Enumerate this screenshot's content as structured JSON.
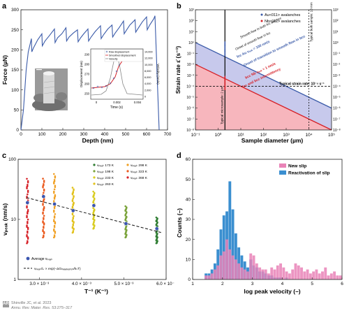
{
  "figure": {
    "credit_line1": "Shinville JC, et al. 2023",
    "credit_line2": "Annu. Rev. Mater. Res. 53:275–317",
    "credit_logo": "AR"
  },
  "panels": {
    "a": {
      "label": "a"
    },
    "b": {
      "label": "b"
    },
    "c": {
      "label": "c"
    },
    "d": {
      "label": "d"
    }
  },
  "colors": {
    "blue_series": "#3a5aa8",
    "red_series": "#d62027",
    "violet_band": "#c7c9ec",
    "pink_band": "#f7b6bd",
    "d_pink": "#e983b7",
    "d_blue": "#3b8fd0"
  },
  "chart_data": [
    {
      "id": "a",
      "type": "line",
      "xlabel": "Depth (nm)",
      "ylabel": "Force (µN)",
      "xlim": [
        0,
        700
      ],
      "ylim": [
        0,
        300
      ],
      "xticks": [
        "0",
        "100",
        "200",
        "300",
        "400",
        "500",
        "600",
        "700"
      ],
      "yticks": [
        "0",
        "50",
        "100",
        "150",
        "200",
        "250",
        "300"
      ],
      "series": [
        {
          "x": [
            0,
            12,
            25,
            35,
            50,
            52,
            60,
            80,
            100,
            102,
            115,
            135,
            160,
            163,
            175,
            195,
            215,
            218,
            230,
            250,
            270,
            273,
            285,
            300,
            320,
            323,
            335,
            355,
            380,
            383,
            395,
            415,
            435,
            438,
            450,
            470,
            490,
            493,
            505,
            520,
            545,
            548,
            560,
            580,
            600,
            603,
            615,
            635,
            640,
            660
          ],
          "y": [
            0,
            50,
            150,
            195,
            228,
            195,
            205,
            225,
            240,
            210,
            222,
            235,
            252,
            218,
            230,
            240,
            255,
            222,
            232,
            242,
            250,
            220,
            230,
            240,
            252,
            222,
            232,
            246,
            260,
            228,
            238,
            252,
            262,
            232,
            242,
            256,
            272,
            240,
            250,
            262,
            275,
            244,
            254,
            270,
            282,
            250,
            262,
            278,
            285,
            0
          ]
        }
      ],
      "inset": {
        "xlabel": "Time (s)",
        "ylabel": "Displacement (nm)",
        "ylabel_right": "Velocity (nm/s)",
        "xticks": [
          "0",
          "0.002",
          "0.004"
        ],
        "yticks_left": [
          "250",
          "260",
          "270",
          "280",
          "290"
        ],
        "yticks_right": [
          "0",
          "2,000",
          "4,000",
          "6,000",
          "8,000",
          "10,000",
          "12,000",
          "14,000"
        ],
        "legend": [
          "Raw displacement",
          "Smoothed displacement",
          "Velocity"
        ]
      }
    },
    {
      "id": "b",
      "type": "line",
      "xlabel": "Sample diameter (µm)",
      "ylabel": "Strain rate ε̇ (s⁻¹)",
      "xscale": "log",
      "yscale": "log",
      "xlim": [
        0.1,
        100000
      ],
      "ylim": [
        1e-08,
        1000
      ],
      "xticks": [
        "10⁻¹",
        "10⁰",
        "10¹",
        "10²",
        "10³",
        "10⁴",
        "10⁵"
      ],
      "yticks": [
        "10⁻⁸",
        "10⁻⁷",
        "10⁻⁶",
        "10⁻⁵",
        "10⁻⁴",
        "10⁻³",
        "10⁻²",
        "10⁻¹",
        "10⁰",
        "10¹",
        "10²",
        "10³"
      ],
      "legend": [
        "Au<011> avalanches",
        "Nb<011> avalanches"
      ],
      "annotations": {
        "smooth_flow": "Smooth flow in both fcc and bcc",
        "onset_fcc": "Onset of smooth flow in fcc",
        "fcc_au": "fcc Au vₒᵣᵢₜ = 100 nm/s",
        "onset_bcc": "Onset of transition to smooth flow in bcc",
        "bcc_nb": "bcc Nb vₒᵣᵢₜ = 1 nm/s",
        "intermittency": "fcc and bcc intermittency",
        "typical_rate": "Typical strain rate: 10⁻⁴ s⁻¹",
        "micro_sample": "Typical microsample: 2 µm",
        "bulk_sample": "Typical bulk sample: 10 mm"
      },
      "series": [
        {
          "name": "fcc Au vₒᵣᵢₜ = 100 nm/s",
          "x": [
            0.1,
            100000
          ],
          "y": [
            1,
            1e-06
          ]
        },
        {
          "name": "bcc Nb vₒᵣᵢₜ = 1 nm/s",
          "x": [
            0.1,
            100000
          ],
          "y": [
            0.01,
            1e-08
          ]
        }
      ],
      "reference_lines": {
        "strain_rate": 0.0001,
        "microsample": 2,
        "bulk_sample": 10000
      }
    },
    {
      "id": "c",
      "type": "scatter",
      "xlabel": "T⁻¹ (K⁻¹)",
      "ylabel": "vₚₑₐₖ (nm/s)",
      "yscale": "log",
      "xlim": [
        0.0025,
        0.006
      ],
      "ylim": [
        1,
        100
      ],
      "xticks": [
        "3.0 × 10⁻³",
        "4.0 × 10⁻³",
        "5.0 × 10⁻³",
        "6.0 × 10⁻³"
      ],
      "yticks": [
        "1",
        "10",
        "100"
      ],
      "legend": [
        "vₚₑₐₖ 173 K",
        "vₚₑₐₖ 198 K",
        "vₚₑₐₖ 233 K",
        "vₚₑₐₖ 263 K",
        "vₚₑₐₖ 298 K",
        "vₚₑₐₖ 323 K",
        "vₚₑₐₖ 368 K"
      ],
      "legend_avg": "Average vₚₑₐₖ",
      "legend_fit": "vₚₑₐₖ/L ∝ exp(−ΔGₙₑₑₐₗₑₐₜᵢₒₙ/kₛT)",
      "series": [
        {
          "name": "vₚₑₐₖ 173 K",
          "x": 0.00578,
          "avg": 7,
          "min": 4,
          "max": 11,
          "color": "#2f7d32"
        },
        {
          "name": "vₚₑₐₖ 198 K",
          "x": 0.00505,
          "avg": 8.5,
          "min": 5,
          "max": 17,
          "color": "#7aa33a"
        },
        {
          "name": "vₚₑₐₖ 233 K",
          "x": 0.00429,
          "avg": 17,
          "min": 7,
          "max": 30,
          "color": "#d8cc1f"
        },
        {
          "name": "vₚₑₐₖ 263 K",
          "x": 0.0038,
          "avg": 14,
          "min": 6,
          "max": 35,
          "color": "#e2c21d"
        },
        {
          "name": "vₚₑₐₖ 298 K",
          "x": 0.00336,
          "avg": 18,
          "min": 5,
          "max": 60,
          "color": "#f0a024"
        },
        {
          "name": "vₚₑₐₖ 323 K",
          "x": 0.0031,
          "avg": 24,
          "min": 5,
          "max": 50,
          "color": "#ea5a1e"
        },
        {
          "name": "vₚₑₐₖ 368 K",
          "x": 0.00272,
          "avg": 19,
          "min": 4,
          "max": 50,
          "color": "#d62027"
        }
      ],
      "fit_line": {
        "x": [
          0.0027,
          0.0059
        ],
        "y": [
          23,
          6
        ]
      }
    },
    {
      "id": "d",
      "type": "bar",
      "xlabel": "log peak velocity (–)",
      "ylabel": "Counts (–)",
      "xlim": [
        1,
        6
      ],
      "ylim": [
        0,
        60
      ],
      "xticks": [
        "1",
        "2",
        "3",
        "4",
        "5",
        "6"
      ],
      "yticks": [
        "0",
        "10",
        "20",
        "30",
        "40",
        "50",
        "60"
      ],
      "bin_start": 1.4,
      "bin_width": 0.1,
      "series": [
        {
          "name": "New slip",
          "values": [
            2,
            2,
            3,
            5,
            7,
            12,
            14,
            20,
            15,
            12,
            10,
            8,
            6,
            5,
            4,
            13,
            12,
            8,
            6,
            5,
            5,
            3,
            6,
            5,
            7,
            8,
            6,
            4,
            3,
            5,
            8,
            7,
            6,
            4,
            5,
            3,
            4,
            5,
            3,
            4,
            6,
            2,
            3,
            4,
            2,
            2
          ]
        },
        {
          "name": "Reactivation of slip",
          "values": [
            3,
            3,
            5,
            8,
            15,
            25,
            32,
            34,
            49,
            35,
            23,
            16,
            12,
            9,
            6,
            10,
            7,
            6,
            4,
            4,
            3,
            2,
            2,
            1,
            1,
            1,
            0,
            1,
            0,
            0,
            0,
            0,
            0,
            0,
            0,
            0,
            0,
            0,
            0,
            0,
            0,
            0,
            0,
            0,
            0,
            0
          ]
        }
      ]
    }
  ]
}
